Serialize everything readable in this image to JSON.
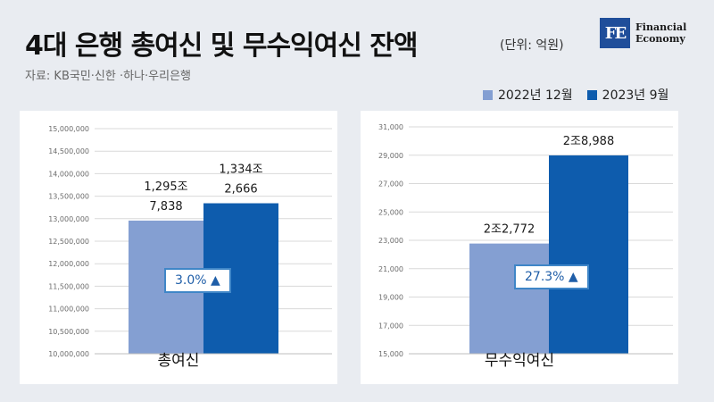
{
  "header": {
    "title": "4대 은행 총여신 및 무수익여신 잔액",
    "unit": "(단위: 억원)",
    "source": "자료: KB국민·신한 ·하나·우리은행",
    "logo_mark": "FE",
    "logo_line1": "Financial",
    "logo_line2": "Economy"
  },
  "legend": [
    {
      "label": "2022년 12월",
      "color": "#849fd2"
    },
    {
      "label": "2023년 9월",
      "color": "#0e5cad"
    }
  ],
  "chart_data": [
    {
      "type": "bar",
      "category": "총여신",
      "series": [
        {
          "name": "2022년 12월",
          "value": 12957838,
          "label_lines": [
            "1,295조",
            "7,838"
          ],
          "color": "#849fd2"
        },
        {
          "name": "2023년 9월",
          "value": 13342666,
          "label_lines": [
            "1,334조",
            "2,666"
          ],
          "color": "#0e5cad"
        }
      ],
      "ylim": [
        10000000,
        15000000
      ],
      "y_ticks": [
        "10,000,000",
        "10,500,000",
        "11,000,000",
        "11,500,000",
        "12,000,000",
        "12,500,000",
        "13,000,000",
        "13,500,000",
        "14,000,000",
        "14,500,000",
        "15,000,000"
      ],
      "change_badge": "3.0% ▲",
      "grid": true
    },
    {
      "type": "bar",
      "category": "무수익여신",
      "series": [
        {
          "name": "2022년 12월",
          "value": 22772,
          "label_lines": [
            "2조2,772"
          ],
          "color": "#849fd2"
        },
        {
          "name": "2023년 9월",
          "value": 28988,
          "label_lines": [
            "2조8,988"
          ],
          "color": "#0e5cad"
        }
      ],
      "ylim": [
        15000,
        31000
      ],
      "y_ticks": [
        "15,000",
        "17,000",
        "19,000",
        "21,000",
        "23,000",
        "25,000",
        "27,000",
        "29,000",
        "31,000"
      ],
      "change_badge": "27.3% ▲",
      "grid": true
    }
  ]
}
